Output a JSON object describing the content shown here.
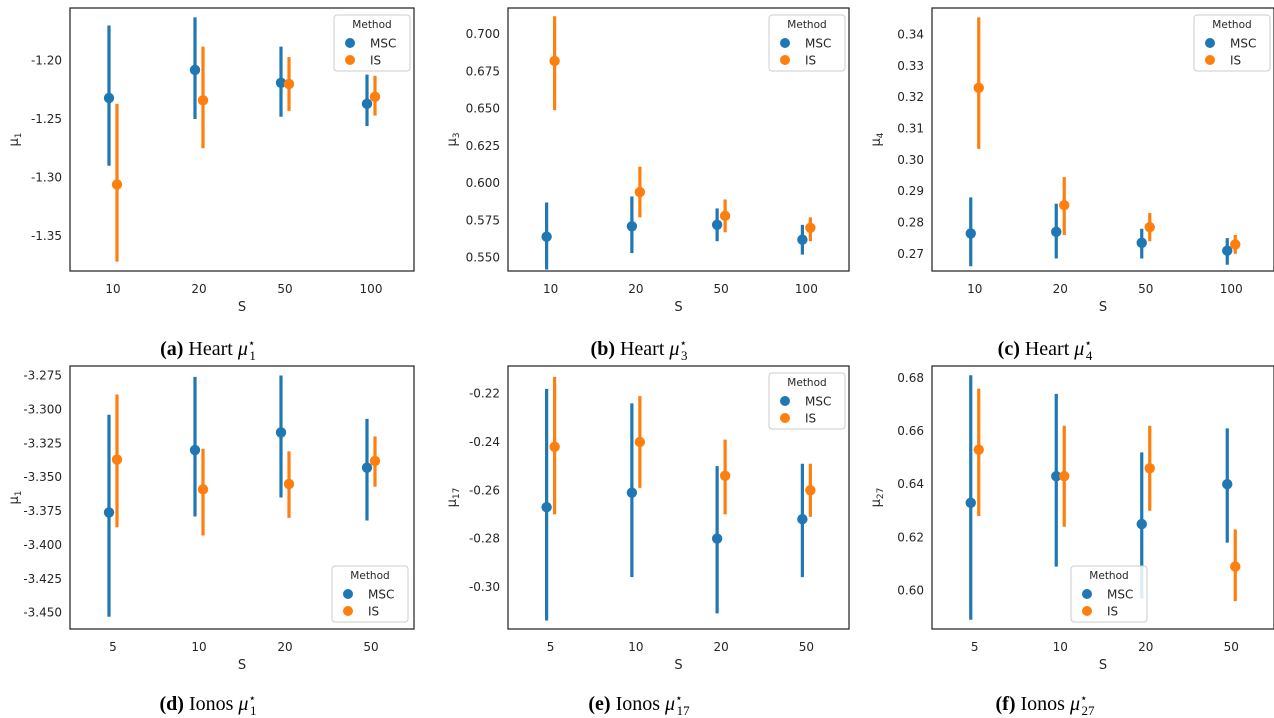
{
  "colors": {
    "MSC": "#1f77b4",
    "IS": "#ff7f0e"
  },
  "chart_data": [
    {
      "type": "pointplot",
      "caption": {
        "tag": "(a)",
        "text": "Heart",
        "symbol": "μ",
        "sub": "1",
        "sup": "⋆"
      },
      "xlabel": "S",
      "ylabel": {
        "symbol": "μ",
        "sub": "1"
      },
      "categories": [
        "10",
        "20",
        "50",
        "100"
      ],
      "ylim": [
        -1.38,
        -1.155
      ],
      "yticks": [
        -1.35,
        -1.3,
        -1.25,
        -1.2
      ],
      "ytick_labels": [
        "-1.35",
        "-1.30",
        "-1.25",
        "-1.20"
      ],
      "legend": {
        "title": "Method",
        "position": "top-right"
      },
      "series": [
        {
          "name": "MSC",
          "mean": [
            -1.232,
            -1.208,
            -1.219,
            -1.237
          ],
          "lower": [
            -1.29,
            -1.25,
            -1.248,
            -1.256
          ],
          "upper": [
            -1.17,
            -1.163,
            -1.188,
            -1.212
          ]
        },
        {
          "name": "IS",
          "mean": [
            -1.306,
            -1.234,
            -1.22,
            -1.231
          ],
          "lower": [
            -1.372,
            -1.275,
            -1.243,
            -1.247
          ],
          "upper": [
            -1.237,
            -1.188,
            -1.197,
            -1.213
          ]
        }
      ]
    },
    {
      "type": "pointplot",
      "caption": {
        "tag": "(b)",
        "text": "Heart",
        "symbol": "μ",
        "sub": "3",
        "sup": "⋆"
      },
      "xlabel": "S",
      "ylabel": {
        "symbol": "μ",
        "sub": "3"
      },
      "categories": [
        "10",
        "20",
        "50",
        "100"
      ],
      "ylim": [
        0.541,
        0.7175
      ],
      "yticks": [
        0.55,
        0.575,
        0.6,
        0.625,
        0.65,
        0.675,
        0.7
      ],
      "ytick_labels": [
        "0.550",
        "0.575",
        "0.600",
        "0.625",
        "0.650",
        "0.675",
        "0.700"
      ],
      "legend": {
        "title": "Method",
        "position": "top-right"
      },
      "series": [
        {
          "name": "MSC",
          "mean": [
            0.564,
            0.571,
            0.572,
            0.562
          ],
          "lower": [
            0.542,
            0.553,
            0.561,
            0.552
          ],
          "upper": [
            0.587,
            0.591,
            0.583,
            0.572
          ]
        },
        {
          "name": "IS",
          "mean": [
            0.682,
            0.594,
            0.578,
            0.57
          ],
          "lower": [
            0.649,
            0.577,
            0.567,
            0.561
          ],
          "upper": [
            0.712,
            0.611,
            0.589,
            0.577
          ]
        }
      ]
    },
    {
      "type": "pointplot",
      "caption": {
        "tag": "(c)",
        "text": "Heart",
        "symbol": "μ",
        "sub": "4",
        "sup": "⋆"
      },
      "xlabel": "S",
      "ylabel": {
        "symbol": "μ",
        "sub": "4"
      },
      "categories": [
        "10",
        "20",
        "50",
        "100"
      ],
      "ylim": [
        0.2645,
        0.3485
      ],
      "yticks": [
        0.27,
        0.28,
        0.29,
        0.3,
        0.31,
        0.32,
        0.33,
        0.34
      ],
      "ytick_labels": [
        "0.27",
        "0.28",
        "0.29",
        "0.30",
        "0.31",
        "0.32",
        "0.33",
        "0.34"
      ],
      "legend": {
        "title": "Method",
        "position": "top-right"
      },
      "series": [
        {
          "name": "MSC",
          "mean": [
            0.2765,
            0.277,
            0.2735,
            0.271
          ],
          "lower": [
            0.266,
            0.2685,
            0.2685,
            0.2665
          ],
          "upper": [
            0.288,
            0.286,
            0.278,
            0.275
          ]
        },
        {
          "name": "IS",
          "mean": [
            0.323,
            0.2855,
            0.2785,
            0.273
          ],
          "lower": [
            0.3035,
            0.276,
            0.274,
            0.27
          ],
          "upper": [
            0.3455,
            0.2945,
            0.283,
            0.276
          ]
        }
      ]
    },
    {
      "type": "pointplot",
      "caption": {
        "tag": "(d)",
        "text": "Ionos",
        "symbol": "μ",
        "sub": "1",
        "sup": "⋆"
      },
      "xlabel": "S",
      "ylabel": {
        "symbol": "μ",
        "sub": "1"
      },
      "categories": [
        "5",
        "10",
        "20",
        "50"
      ],
      "ylim": [
        -3.462,
        -3.268
      ],
      "yticks": [
        -3.45,
        -3.425,
        -3.4,
        -3.375,
        -3.35,
        -3.325,
        -3.3,
        -3.275
      ],
      "ytick_labels": [
        "-3.450",
        "-3.425",
        "-3.400",
        "-3.375",
        "-3.350",
        "-3.325",
        "-3.300",
        "-3.275"
      ],
      "legend": {
        "title": "Method",
        "position": "bottom-right"
      },
      "series": [
        {
          "name": "MSC",
          "mean": [
            -3.376,
            -3.33,
            -3.317,
            -3.343
          ],
          "lower": [
            -3.453,
            -3.379,
            -3.365,
            -3.382
          ],
          "upper": [
            -3.304,
            -3.276,
            -3.275,
            -3.307
          ]
        },
        {
          "name": "IS",
          "mean": [
            -3.337,
            -3.359,
            -3.355,
            -3.338
          ],
          "lower": [
            -3.387,
            -3.393,
            -3.38,
            -3.357
          ],
          "upper": [
            -3.289,
            -3.329,
            -3.331,
            -3.32
          ]
        }
      ]
    },
    {
      "type": "pointplot",
      "caption": {
        "tag": "(e)",
        "text": "Ionos",
        "symbol": "μ",
        "sub": "17",
        "sup": "⋆"
      },
      "xlabel": "S",
      "ylabel": {
        "symbol": "μ",
        "sub": "17"
      },
      "categories": [
        "5",
        "10",
        "20",
        "50"
      ],
      "ylim": [
        -0.3175,
        -0.2085
      ],
      "yticks": [
        -0.3,
        -0.28,
        -0.26,
        -0.24,
        -0.22
      ],
      "ytick_labels": [
        "-0.30",
        "-0.28",
        "-0.26",
        "-0.24",
        "-0.22"
      ],
      "legend": {
        "title": "Method",
        "position": "top-right"
      },
      "series": [
        {
          "name": "MSC",
          "mean": [
            -0.267,
            -0.261,
            -0.28,
            -0.272
          ],
          "lower": [
            -0.314,
            -0.296,
            -0.311,
            -0.296
          ],
          "upper": [
            -0.218,
            -0.224,
            -0.25,
            -0.249
          ]
        },
        {
          "name": "IS",
          "mean": [
            -0.242,
            -0.24,
            -0.254,
            -0.26
          ],
          "lower": [
            -0.27,
            -0.259,
            -0.27,
            -0.271
          ],
          "upper": [
            -0.213,
            -0.221,
            -0.239,
            -0.249
          ]
        }
      ]
    },
    {
      "type": "pointplot",
      "caption": {
        "tag": "(f)",
        "text": "Ionos",
        "symbol": "μ",
        "sub": "27",
        "sup": "⋆"
      },
      "xlabel": "S",
      "ylabel": {
        "symbol": "μ",
        "sub": "27"
      },
      "categories": [
        "5",
        "10",
        "20",
        "50"
      ],
      "ylim": [
        0.5855,
        0.6845
      ],
      "yticks": [
        0.6,
        0.62,
        0.64,
        0.66,
        0.68
      ],
      "ytick_labels": [
        "0.60",
        "0.62",
        "0.64",
        "0.66",
        "0.68"
      ],
      "legend": {
        "title": "Method",
        "position": "bottom-center"
      },
      "series": [
        {
          "name": "MSC",
          "mean": [
            0.633,
            0.643,
            0.625,
            0.64
          ],
          "lower": [
            0.589,
            0.609,
            0.597,
            0.618
          ],
          "upper": [
            0.681,
            0.674,
            0.652,
            0.661
          ]
        },
        {
          "name": "IS",
          "mean": [
            0.653,
            0.643,
            0.646,
            0.609
          ],
          "lower": [
            0.628,
            0.624,
            0.63,
            0.596
          ],
          "upper": [
            0.676,
            0.662,
            0.662,
            0.623
          ]
        }
      ]
    }
  ]
}
